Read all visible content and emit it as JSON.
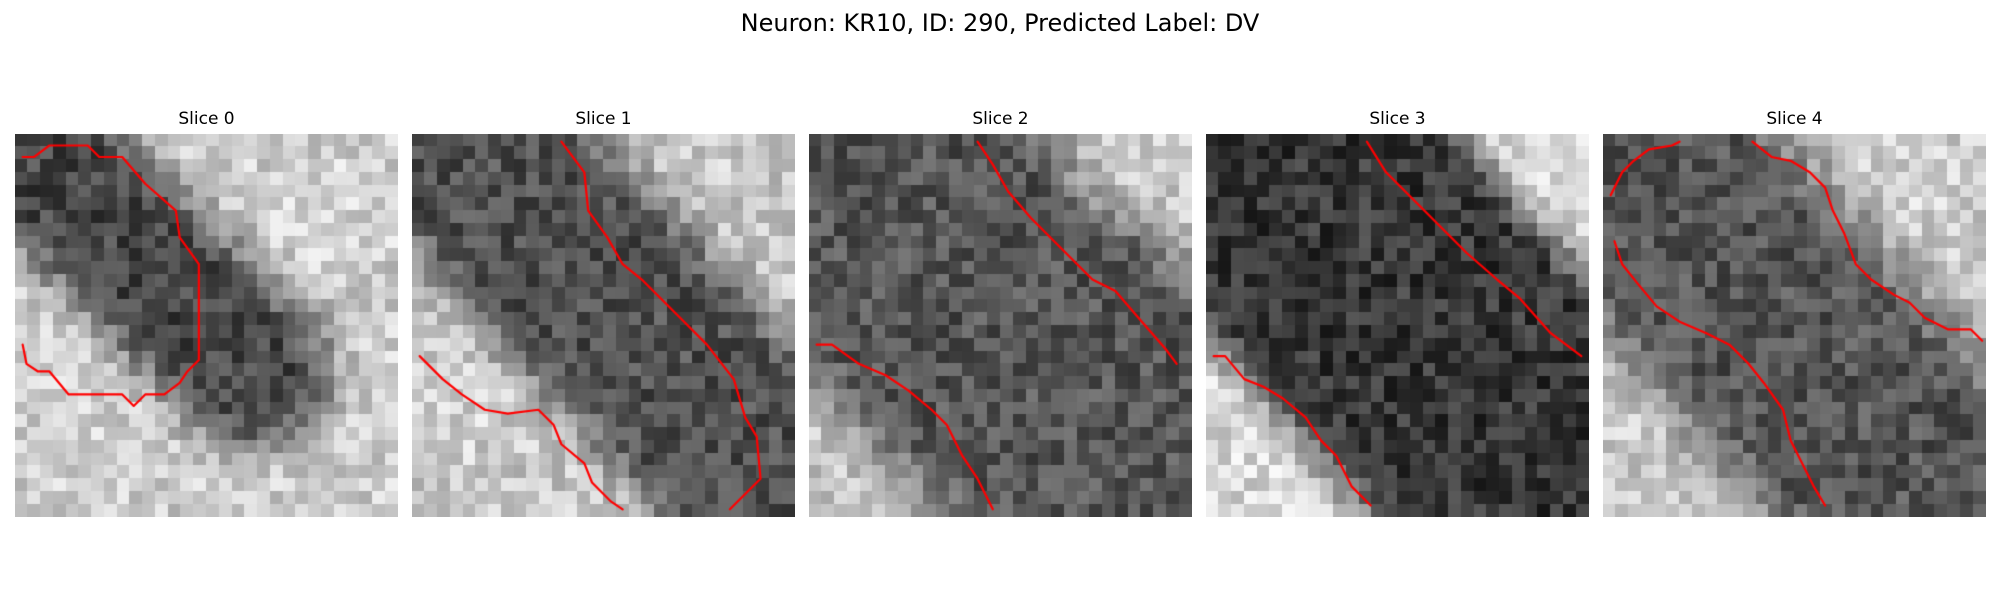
{
  "figure": {
    "title": "Neuron: KR10, ID: 290, Predicted Label: DV"
  },
  "slices": [
    {
      "title": "Slice 0"
    },
    {
      "title": "Slice 1"
    },
    {
      "title": "Slice 2"
    },
    {
      "title": "Slice 3"
    },
    {
      "title": "Slice 4"
    }
  ],
  "colors": {
    "contour": "#ff0000",
    "background": "#ffffff"
  }
}
